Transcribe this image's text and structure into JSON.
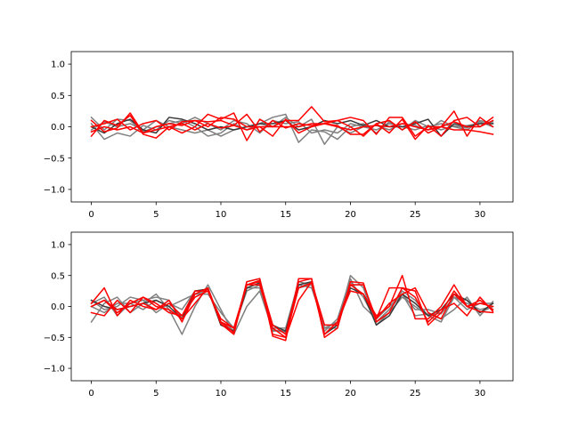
{
  "colors": {
    "gray": "#808080",
    "dark": "#3a3a3a",
    "red": "#ff0000"
  },
  "chart_data": [
    {
      "type": "line",
      "title": "",
      "xlabel": "",
      "ylabel": "",
      "xlim": [
        -1.55,
        32.55
      ],
      "ylim": [
        -1.2,
        1.2
      ],
      "xticks": [
        0,
        5,
        10,
        15,
        20,
        25,
        30
      ],
      "yticks": [
        -1.0,
        -0.5,
        0.0,
        0.5,
        1.0
      ],
      "xtick_labels": [
        "0",
        "5",
        "10",
        "15",
        "20",
        "25",
        "30"
      ],
      "ytick_labels": [
        "−1.0",
        "−0.5",
        "0.0",
        "0.5",
        "1.0"
      ],
      "grid": false,
      "x": [
        0,
        1,
        2,
        3,
        4,
        5,
        6,
        7,
        8,
        9,
        10,
        11,
        12,
        13,
        14,
        15,
        16,
        17,
        18,
        19,
        20,
        21,
        22,
        23,
        24,
        25,
        26,
        27,
        28,
        29,
        30,
        31
      ],
      "series": [
        {
          "color": "gray",
          "values": [
            0.15,
            -0.05,
            0.12,
            0.1,
            -0.08,
            0.0,
            0.05,
            0.1,
            0.0,
            -0.15,
            -0.1,
            0.05,
            -0.05,
            0.05,
            0.15,
            0.2,
            -0.25,
            -0.05,
            -0.08,
            -0.2,
            0.0,
            0.05,
            -0.1,
            0.08,
            -0.05,
            0.1,
            0.0,
            0.05,
            0.0,
            0.02,
            0.05,
            0.08
          ]
        },
        {
          "color": "gray",
          "values": [
            0.05,
            -0.2,
            -0.1,
            -0.15,
            0.02,
            -0.05,
            0.1,
            0.05,
            0.15,
            0.05,
            -0.05,
            0.1,
            0.05,
            -0.1,
            0.1,
            0.05,
            0.08,
            -0.1,
            -0.05,
            -0.1,
            0.05,
            0.0,
            0.02,
            -0.05,
            0.05,
            0.02,
            -0.05,
            0.1,
            0.0,
            -0.05,
            0.08,
            0.0
          ]
        },
        {
          "color": "gray",
          "values": [
            -0.05,
            0.08,
            0.0,
            0.05,
            -0.05,
            0.1,
            0.0,
            -0.05,
            -0.1,
            -0.05,
            -0.15,
            -0.05,
            0.0,
            0.05,
            0.0,
            0.15,
            0.0,
            0.12,
            -0.28,
            0.0,
            -0.1,
            0.0,
            -0.05,
            0.05,
            0.0,
            -0.05,
            0.02,
            -0.05,
            0.02,
            -0.02,
            0.1,
            0.05
          ]
        },
        {
          "color": "dark",
          "values": [
            0.0,
            -0.1,
            0.05,
            0.12,
            -0.05,
            -0.1,
            0.15,
            0.12,
            0.05,
            -0.05,
            0.0,
            -0.05,
            0.0,
            0.05,
            0.05,
            0.1,
            -0.05,
            0.0,
            0.1,
            0.05,
            0.1,
            0.02,
            0.1,
            0.0,
            0.0,
            0.05,
            0.12,
            -0.15,
            0.05,
            0.0,
            0.05,
            0.05
          ]
        },
        {
          "color": "red",
          "values": [
            -0.15,
            0.1,
            0.02,
            0.18,
            -0.12,
            -0.18,
            0.0,
            -0.1,
            0.0,
            0.2,
            0.12,
            0.22,
            -0.22,
            0.12,
            0.0,
            0.1,
            0.1,
            0.32,
            0.08,
            0.1,
            0.15,
            0.1,
            -0.12,
            0.15,
            0.15,
            -0.15,
            0.0,
            0.0,
            0.25,
            -0.15,
            0.15,
            0.0
          ]
        },
        {
          "color": "red",
          "values": [
            0.0,
            0.05,
            0.12,
            -0.05,
            0.05,
            0.1,
            -0.05,
            0.08,
            0.1,
            0.08,
            0.1,
            0.02,
            0.2,
            -0.08,
            0.1,
            -0.02,
            0.05,
            0.02,
            0.05,
            0.1,
            0.0,
            -0.15,
            0.05,
            0.1,
            -0.05,
            0.08,
            -0.1,
            0.0,
            0.08,
            0.0,
            0.0,
            0.15
          ]
        },
        {
          "color": "red",
          "values": [
            0.1,
            -0.08,
            -0.02,
            0.22,
            -0.1,
            0.0,
            0.05,
            0.02,
            0.1,
            0.0,
            0.15,
            0.12,
            0.0,
            0.0,
            -0.15,
            0.12,
            -0.1,
            0.0,
            0.05,
            0.02,
            -0.12,
            -0.12,
            0.05,
            -0.1,
            0.12,
            -0.2,
            0.02,
            -0.15,
            0.1,
            0.15,
            0.0,
            0.1
          ]
        },
        {
          "color": "red",
          "values": [
            -0.08,
            0.0,
            -0.05,
            0.0,
            -0.1,
            -0.05,
            0.0,
            0.05,
            -0.05,
            0.05,
            -0.02,
            0.02,
            -0.05,
            0.0,
            0.0,
            0.0,
            0.0,
            0.05,
            0.05,
            0.0,
            -0.05,
            0.0,
            0.02,
            0.0,
            0.05,
            0.0,
            -0.05,
            0.0,
            -0.05,
            -0.05,
            -0.08,
            -0.12
          ]
        }
      ]
    },
    {
      "type": "line",
      "title": "",
      "xlabel": "",
      "ylabel": "",
      "xlim": [
        -1.55,
        32.55
      ],
      "ylim": [
        -1.2,
        1.2
      ],
      "xticks": [
        0,
        5,
        10,
        15,
        20,
        25,
        30
      ],
      "yticks": [
        -1.0,
        -0.5,
        0.0,
        0.5,
        1.0
      ],
      "xtick_labels": [
        "0",
        "5",
        "10",
        "15",
        "20",
        "25",
        "30"
      ],
      "ytick_labels": [
        "−1.0",
        "−0.5",
        "0.0",
        "0.5",
        "1.0"
      ],
      "grid": false,
      "x": [
        0,
        1,
        2,
        3,
        4,
        5,
        6,
        7,
        8,
        9,
        10,
        11,
        12,
        13,
        14,
        15,
        16,
        17,
        18,
        19,
        20,
        21,
        22,
        23,
        24,
        25,
        26,
        27,
        28,
        29,
        30,
        31
      ],
      "series": [
        {
          "color": "gray",
          "values": [
            -0.25,
            0.05,
            0.15,
            -0.1,
            0.05,
            0.2,
            -0.05,
            -0.45,
            0.0,
            0.35,
            -0.05,
            -0.45,
            0.0,
            0.25,
            -0.38,
            -0.4,
            0.35,
            0.3,
            -0.3,
            -0.3,
            0.5,
            0.3,
            -0.3,
            -0.1,
            0.15,
            0.0,
            -0.15,
            -0.25,
            0.15,
            0.1,
            -0.1,
            0.0
          ]
        },
        {
          "color": "gray",
          "values": [
            0.05,
            0.15,
            -0.15,
            0.05,
            0.1,
            0.15,
            0.1,
            -0.2,
            0.2,
            0.25,
            -0.25,
            -0.4,
            0.4,
            0.45,
            -0.35,
            -0.35,
            0.4,
            0.35,
            -0.35,
            -0.35,
            0.4,
            0.15,
            -0.25,
            -0.05,
            0.25,
            0.1,
            -0.15,
            -0.1,
            0.15,
            -0.05,
            0.05,
            0.05
          ]
        },
        {
          "color": "gray",
          "values": [
            0.1,
            -0.05,
            0.0,
            0.15,
            0.1,
            -0.1,
            0.05,
            -0.05,
            0.25,
            0.28,
            -0.3,
            -0.38,
            0.3,
            0.3,
            -0.38,
            -0.42,
            0.3,
            0.4,
            -0.4,
            -0.2,
            0.45,
            0.0,
            -0.2,
            0.0,
            0.2,
            -0.15,
            -0.12,
            -0.2,
            -0.05,
            0.15,
            -0.15,
            0.08
          ]
        },
        {
          "color": "gray",
          "values": [
            0.0,
            -0.1,
            0.05,
            0.05,
            -0.05,
            0.1,
            0.0,
            0.1,
            0.2,
            0.2,
            -0.1,
            -0.35,
            0.25,
            0.35,
            -0.4,
            -0.38,
            0.3,
            0.35,
            -0.35,
            -0.25,
            0.35,
            0.35,
            -0.25,
            -0.05,
            0.2,
            -0.05,
            -0.05,
            -0.12,
            0.15,
            0.05,
            -0.05,
            0.0
          ]
        },
        {
          "color": "dark",
          "values": [
            0.1,
            0.0,
            -0.05,
            0.0,
            0.05,
            0.1,
            0.0,
            -0.2,
            0.25,
            0.28,
            -0.3,
            -0.4,
            0.3,
            0.38,
            -0.3,
            -0.4,
            0.35,
            0.4,
            -0.45,
            -0.3,
            0.3,
            0.2,
            -0.3,
            -0.15,
            0.2,
            0.05,
            -0.15,
            -0.05,
            0.2,
            0.1,
            -0.1,
            0.05
          ]
        },
        {
          "color": "red",
          "values": [
            0.05,
            0.3,
            -0.15,
            0.1,
            0.0,
            -0.05,
            0.05,
            -0.15,
            0.25,
            0.25,
            -0.25,
            -0.35,
            0.35,
            0.4,
            -0.45,
            -0.5,
            0.1,
            0.4,
            -0.3,
            -0.3,
            0.35,
            0.2,
            -0.15,
            0.0,
            0.5,
            -0.2,
            -0.2,
            0.0,
            0.35,
            0.0,
            0.1,
            -0.05
          ]
        },
        {
          "color": "red",
          "values": [
            0.0,
            0.1,
            -0.1,
            0.05,
            0.15,
            0.05,
            -0.1,
            -0.15,
            0.15,
            0.25,
            -0.2,
            -0.35,
            0.35,
            0.42,
            -0.3,
            -0.45,
            0.4,
            0.45,
            -0.45,
            -0.25,
            0.35,
            0.35,
            -0.2,
            0.3,
            0.3,
            0.25,
            -0.3,
            -0.1,
            0.25,
            0.0,
            -0.08,
            -0.1
          ]
        },
        {
          "color": "red",
          "values": [
            -0.1,
            -0.15,
            0.1,
            -0.1,
            0.15,
            0.0,
            -0.05,
            -0.2,
            0.05,
            0.3,
            -0.28,
            -0.45,
            0.4,
            0.45,
            -0.48,
            -0.55,
            0.45,
            0.45,
            -0.5,
            -0.35,
            0.4,
            0.38,
            -0.25,
            -0.1,
            0.3,
            0.15,
            -0.25,
            -0.05,
            0.05,
            -0.15,
            0.15,
            -0.08
          ]
        },
        {
          "color": "red",
          "values": [
            0.0,
            0.1,
            -0.05,
            0.0,
            0.05,
            -0.05,
            0.1,
            -0.25,
            0.2,
            0.3,
            -0.25,
            -0.42,
            0.35,
            0.35,
            -0.35,
            -0.5,
            0.3,
            0.38,
            -0.45,
            -0.25,
            0.25,
            0.2,
            -0.2,
            0.05,
            0.2,
            0.3,
            -0.1,
            -0.2,
            0.2,
            0.0,
            0.05,
            0.0
          ]
        }
      ]
    }
  ]
}
